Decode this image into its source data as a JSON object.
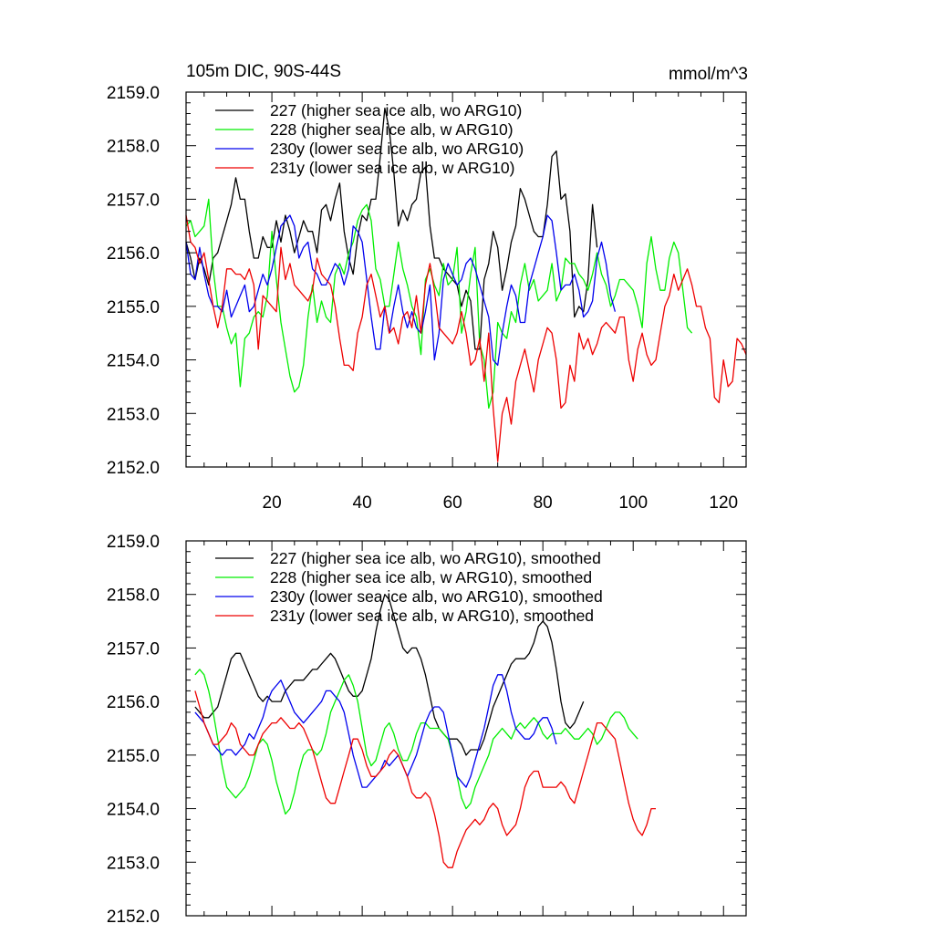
{
  "chart_data": [
    {
      "type": "line",
      "title": "105m DIC, 90S-44S",
      "units": "mmol/m^3",
      "xlim": [
        1,
        125
      ],
      "ylim": [
        2152.0,
        2159.0
      ],
      "x_ticks": [
        20,
        40,
        60,
        80,
        100,
        120
      ],
      "x_tick_labels": [
        "20",
        "40",
        "60",
        "80",
        "100",
        "120"
      ],
      "y_ticks": [
        2152.0,
        2153.0,
        2154.0,
        2155.0,
        2156.0,
        2157.0,
        2158.0,
        2159.0
      ],
      "y_tick_labels": [
        "2152.0",
        "2153.0",
        "2154.0",
        "2155.0",
        "2156.0",
        "2157.0",
        "2158.0",
        "2159.0"
      ],
      "legend_position": "top-left",
      "series": [
        {
          "name": "227 (higher sea ice alb, wo ARG10)",
          "color": "#000000",
          "x_start": 1,
          "values": [
            2156.2,
            2155.9,
            2155.5,
            2155.9,
            2155.7,
            2155.4,
            2155.9,
            2156.0,
            2156.3,
            2156.6,
            2156.9,
            2157.4,
            2157.0,
            2157.0,
            2156.4,
            2155.9,
            2155.9,
            2156.3,
            2156.1,
            2156.1,
            2156.6,
            2156.2,
            2156.7,
            2156.4,
            2156.0,
            2156.3,
            2156.6,
            2156.4,
            2156.4,
            2156.0,
            2156.8,
            2156.9,
            2156.6,
            2157.0,
            2157.3,
            2156.4,
            2155.9,
            2155.6,
            2156.3,
            2156.7,
            2156.6,
            2157.0,
            2157.0,
            2157.8,
            2158.7,
            2158.3,
            2157.5,
            2156.5,
            2156.8,
            2156.6,
            2156.9,
            2157.0,
            2157.5,
            2157.6,
            2156.5,
            2155.9,
            2155.9,
            2155.7,
            2155.6,
            2155.5,
            2155.4,
            2155.0,
            2155.3,
            2155.1,
            2154.2,
            2154.2,
            2155.5,
            2155.8,
            2156.4,
            2156.1,
            2155.3,
            2155.7,
            2156.2,
            2156.5,
            2157.2,
            2157.0,
            2156.7,
            2156.4,
            2156.3,
            2156.3,
            2156.9,
            2157.8,
            2157.9,
            2157.0,
            2157.1,
            2156.4,
            2154.8,
            2155.0,
            2154.9,
            2155.5,
            2156.9,
            2156.1
          ]
        },
        {
          "name": "228 (higher sea ice alb, w ARG10)",
          "color": "#00ee00",
          "x_start": 1,
          "values": [
            2156.5,
            2156.6,
            2156.3,
            2156.4,
            2156.5,
            2157.0,
            2155.7,
            2155.0,
            2155.0,
            2154.6,
            2154.3,
            2154.5,
            2153.5,
            2154.4,
            2154.5,
            2154.8,
            2154.9,
            2154.8,
            2155.2,
            2156.4,
            2155.5,
            2154.7,
            2154.2,
            2153.7,
            2153.4,
            2153.5,
            2153.9,
            2154.8,
            2155.4,
            2154.7,
            2155.1,
            2154.8,
            2154.7,
            2155.6,
            2155.8,
            2155.6,
            2156.0,
            2156.2,
            2156.6,
            2156.8,
            2156.9,
            2156.6,
            2155.7,
            2155.5,
            2155.0,
            2155.0,
            2155.6,
            2156.2,
            2155.7,
            2155.4,
            2155.0,
            2154.8,
            2154.1,
            2155.5,
            2155.7,
            2155.4,
            2155.2,
            2155.8,
            2155.4,
            2155.5,
            2156.1,
            2154.5,
            2154.9,
            2155.6,
            2156.1,
            2154.3,
            2154.0,
            2153.1,
            2153.4,
            2154.7,
            2154.5,
            2154.4,
            2154.9,
            2154.7,
            2155.4,
            2155.8,
            2155.3,
            2155.5,
            2155.1,
            2155.2,
            2155.3,
            2155.8,
            2155.1,
            2155.3,
            2155.9,
            2155.8,
            2155.8,
            2155.6,
            2155.5,
            2155.3,
            2155.6,
            2156.0,
            2155.6,
            2155.4,
            2155.0,
            2155.2,
            2155.5,
            2155.5,
            2155.4,
            2155.3,
            2155.0,
            2154.6,
            2155.8,
            2156.3,
            2155.7,
            2155.3,
            2155.3,
            2155.9,
            2156.2,
            2156.0,
            2155.3,
            2154.6,
            2154.5
          ]
        },
        {
          "name": "230y (lower sea ice alb, wo ARG10)",
          "color": "#0000ee",
          "x_start": 1,
          "values": [
            2156.2,
            2155.6,
            2155.5,
            2156.1,
            2155.6,
            2155.2,
            2155.0,
            2155.0,
            2154.9,
            2155.3,
            2154.8,
            2155.0,
            2155.2,
            2155.4,
            2154.9,
            2155.0,
            2155.3,
            2155.6,
            2155.4,
            2155.7,
            2156.1,
            2156.5,
            2156.6,
            2156.7,
            2156.5,
            2155.9,
            2156.1,
            2156.2,
            2155.7,
            2155.6,
            2155.4,
            2155.4,
            2155.6,
            2155.8,
            2155.7,
            2155.4,
            2155.7,
            2156.5,
            2156.4,
            2156.2,
            2155.5,
            2154.8,
            2154.2,
            2154.2,
            2155.0,
            2154.5,
            2155.0,
            2155.4,
            2154.9,
            2154.6,
            2154.9,
            2154.6,
            2154.5,
            2154.9,
            2155.4,
            2154.0,
            2154.5,
            2155.5,
            2155.8,
            2155.6,
            2155.4,
            2155.5,
            2155.8,
            2155.9,
            2155.7,
            2155.4,
            2155.1,
            2154.8,
            2154.0,
            2153.9,
            2154.5,
            2155.0,
            2155.4,
            2155.2,
            2154.7,
            2154.7,
            2155.4,
            2155.7,
            2156.0,
            2156.3,
            2156.7,
            2156.6,
            2156.0,
            2155.3,
            2155.4,
            2155.4,
            2155.6,
            2155.3,
            2154.8,
            2154.9,
            2155.1,
            2155.9,
            2156.2,
            2155.8,
            2155.2,
            2154.9
          ]
        },
        {
          "name": "231y (lower sea ice alb, w ARG10)",
          "color": "#ee0000",
          "x_start": 1,
          "values": [
            2156.7,
            2156.2,
            2156.1,
            2155.8,
            2156.0,
            2155.5,
            2155.0,
            2154.6,
            2155.0,
            2155.7,
            2155.7,
            2155.6,
            2155.6,
            2155.5,
            2155.7,
            2155.4,
            2154.2,
            2155.2,
            2155.1,
            2155.0,
            2154.9,
            2156.1,
            2155.5,
            2155.8,
            2155.4,
            2155.3,
            2155.2,
            2155.1,
            2155.3,
            2155.9,
            2155.6,
            2155.5,
            2155.4,
            2155.0,
            2154.4,
            2153.9,
            2153.9,
            2153.8,
            2154.5,
            2154.8,
            2155.4,
            2155.6,
            2155.2,
            2154.8,
            2155.0,
            2154.5,
            2154.6,
            2154.3,
            2154.8,
            2154.9,
            2154.6,
            2155.2,
            2154.5,
            2155.4,
            2155.8,
            2155.3,
            2154.6,
            2154.5,
            2154.4,
            2154.3,
            2154.5,
            2154.9,
            2154.5,
            2153.9,
            2154.0,
            2154.4,
            2153.6,
            2154.5,
            2153.1,
            2152.1,
            2153.0,
            2153.3,
            2152.8,
            2153.6,
            2153.9,
            2154.2,
            2153.8,
            2153.4,
            2154.0,
            2154.3,
            2154.6,
            2154.5,
            2154.0,
            2153.1,
            2153.2,
            2153.9,
            2153.6,
            2154.5,
            2154.2,
            2154.4,
            2154.1,
            2154.3,
            2154.6,
            2154.7,
            2154.6,
            2154.5,
            2154.8,
            2154.8,
            2154.0,
            2153.6,
            2154.2,
            2154.5,
            2154.1,
            2153.9,
            2154.0,
            2154.5,
            2155.0,
            2155.2,
            2155.6,
            2155.3,
            2155.5,
            2155.7,
            2155.4,
            2155.0,
            2155.0,
            2154.6,
            2154.4,
            2153.3,
            2153.2,
            2154.0,
            2153.5,
            2153.6,
            2154.4,
            2154.3,
            2154.1
          ]
        }
      ]
    },
    {
      "type": "line",
      "title": "",
      "units": "",
      "xlim": [
        1,
        125
      ],
      "ylim": [
        2152.0,
        2159.0
      ],
      "x_ticks": [
        20,
        40,
        60,
        80,
        100,
        120
      ],
      "x_tick_labels": [],
      "y_ticks": [
        2152.0,
        2153.0,
        2154.0,
        2155.0,
        2156.0,
        2157.0,
        2158.0,
        2159.0
      ],
      "y_tick_labels": [
        "2152.0",
        "2153.0",
        "2154.0",
        "2155.0",
        "2156.0",
        "2157.0",
        "2158.0",
        "2159.0"
      ],
      "legend_position": "top-left",
      "series": [
        {
          "name": "227 (higher sea ice alb, wo ARG10), smoothed",
          "color": "#000000",
          "x_start": 3,
          "values": [
            2155.9,
            2155.8,
            2155.7,
            2155.7,
            2155.8,
            2155.9,
            2156.2,
            2156.5,
            2156.8,
            2156.9,
            2156.9,
            2156.7,
            2156.5,
            2156.3,
            2156.1,
            2156.0,
            2156.1,
            2156.0,
            2156.0,
            2156.0,
            2156.2,
            2156.3,
            2156.4,
            2156.4,
            2156.4,
            2156.5,
            2156.6,
            2156.6,
            2156.7,
            2156.8,
            2156.9,
            2156.8,
            2156.6,
            2156.4,
            2156.2,
            2156.1,
            2156.1,
            2156.2,
            2156.5,
            2156.8,
            2157.3,
            2157.7,
            2158.0,
            2157.9,
            2157.6,
            2157.3,
            2157.0,
            2156.9,
            2157.0,
            2157.0,
            2156.8,
            2156.5,
            2156.1,
            2155.7,
            2155.5,
            2155.4,
            2155.3,
            2155.3,
            2155.3,
            2155.2,
            2155.0,
            2155.1,
            2155.1,
            2155.1,
            2155.3,
            2155.6,
            2155.9,
            2156.1,
            2156.3,
            2156.5,
            2156.7,
            2156.8,
            2156.8,
            2156.8,
            2156.9,
            2157.1,
            2157.4,
            2157.5,
            2157.4,
            2157.1,
            2156.6,
            2156.0,
            2155.6,
            2155.5,
            2155.6,
            2155.8,
            2156.0
          ]
        },
        {
          "name": "228 (higher sea ice alb, w ARG10), smoothed",
          "color": "#00ee00",
          "x_start": 3,
          "values": [
            2156.5,
            2156.6,
            2156.5,
            2156.2,
            2155.8,
            2155.3,
            2154.8,
            2154.4,
            2154.3,
            2154.2,
            2154.3,
            2154.4,
            2154.6,
            2154.9,
            2155.2,
            2155.3,
            2155.2,
            2154.9,
            2154.5,
            2154.2,
            2153.9,
            2154.0,
            2154.3,
            2154.7,
            2155.0,
            2155.1,
            2155.1,
            2155.0,
            2155.1,
            2155.4,
            2155.8,
            2156.0,
            2156.2,
            2156.4,
            2156.5,
            2156.3,
            2156.0,
            2155.5,
            2155.0,
            2154.8,
            2154.9,
            2155.2,
            2155.5,
            2155.6,
            2155.4,
            2155.1,
            2154.9,
            2154.9,
            2155.1,
            2155.4,
            2155.6,
            2155.6,
            2155.5,
            2155.5,
            2155.5,
            2155.4,
            2155.3,
            2155.0,
            2154.6,
            2154.2,
            2154.0,
            2154.1,
            2154.4,
            2154.6,
            2154.8,
            2155.0,
            2155.3,
            2155.4,
            2155.5,
            2155.4,
            2155.3,
            2155.5,
            2155.6,
            2155.5,
            2155.6,
            2155.7,
            2155.6,
            2155.4,
            2155.3,
            2155.4,
            2155.4,
            2155.4,
            2155.5,
            2155.4,
            2155.3,
            2155.3,
            2155.4,
            2155.5,
            2155.4,
            2155.2,
            2155.3,
            2155.5,
            2155.7,
            2155.8,
            2155.8,
            2155.7,
            2155.5,
            2155.4,
            2155.3
          ]
        },
        {
          "name": "230y (lower sea ice alb, wo ARG10), smoothed",
          "color": "#0000ee",
          "x_start": 3,
          "values": [
            2155.8,
            2155.7,
            2155.6,
            2155.4,
            2155.2,
            2155.1,
            2155.0,
            2155.1,
            2155.1,
            2155.0,
            2155.1,
            2155.2,
            2155.4,
            2155.3,
            2155.5,
            2155.7,
            2156.0,
            2156.2,
            2156.3,
            2156.4,
            2156.2,
            2156.0,
            2155.8,
            2155.7,
            2155.6,
            2155.7,
            2155.8,
            2155.9,
            2156.0,
            2156.2,
            2156.2,
            2156.1,
            2156.0,
            2155.8,
            2155.4,
            2155.0,
            2154.7,
            2154.4,
            2154.4,
            2154.5,
            2154.6,
            2154.7,
            2154.9,
            2154.8,
            2154.9,
            2155.0,
            2154.8,
            2154.6,
            2154.8,
            2155.0,
            2155.3,
            2155.6,
            2155.8,
            2155.9,
            2155.9,
            2155.8,
            2155.4,
            2155.0,
            2154.6,
            2154.5,
            2154.4,
            2154.6,
            2154.9,
            2155.2,
            2155.5,
            2155.9,
            2156.3,
            2156.5,
            2156.5,
            2156.2,
            2155.8,
            2155.5,
            2155.4,
            2155.3,
            2155.3,
            2155.4,
            2155.6,
            2155.7,
            2155.7,
            2155.5,
            2155.2
          ]
        },
        {
          "name": "231y (lower sea ice alb, w ARG10), smoothed",
          "color": "#ee0000",
          "x_start": 3,
          "values": [
            2156.2,
            2155.9,
            2155.6,
            2155.4,
            2155.2,
            2155.2,
            2155.3,
            2155.4,
            2155.6,
            2155.5,
            2155.2,
            2155.1,
            2155.0,
            2155.0,
            2155.2,
            2155.4,
            2155.5,
            2155.6,
            2155.6,
            2155.7,
            2155.6,
            2155.5,
            2155.5,
            2155.6,
            2155.5,
            2155.3,
            2155.1,
            2154.8,
            2154.5,
            2154.2,
            2154.1,
            2154.1,
            2154.4,
            2154.7,
            2155.0,
            2155.3,
            2155.3,
            2155.1,
            2154.8,
            2154.6,
            2154.6,
            2154.7,
            2154.8,
            2155.0,
            2155.1,
            2155.0,
            2154.8,
            2154.6,
            2154.3,
            2154.2,
            2154.2,
            2154.3,
            2154.2,
            2153.9,
            2153.5,
            2153.0,
            2152.9,
            2152.9,
            2153.2,
            2153.4,
            2153.6,
            2153.7,
            2153.8,
            2153.7,
            2153.8,
            2154.0,
            2154.1,
            2154.0,
            2153.7,
            2153.5,
            2153.6,
            2153.7,
            2154.0,
            2154.4,
            2154.6,
            2154.7,
            2154.7,
            2154.4,
            2154.4,
            2154.4,
            2154.4,
            2154.5,
            2154.4,
            2154.2,
            2154.1,
            2154.4,
            2154.7,
            2155.0,
            2155.3,
            2155.6,
            2155.6,
            2155.5,
            2155.4,
            2155.3,
            2154.9,
            2154.5,
            2154.1,
            2153.8,
            2153.6,
            2153.5,
            2153.7,
            2154.0,
            2154.0
          ]
        }
      ]
    }
  ]
}
